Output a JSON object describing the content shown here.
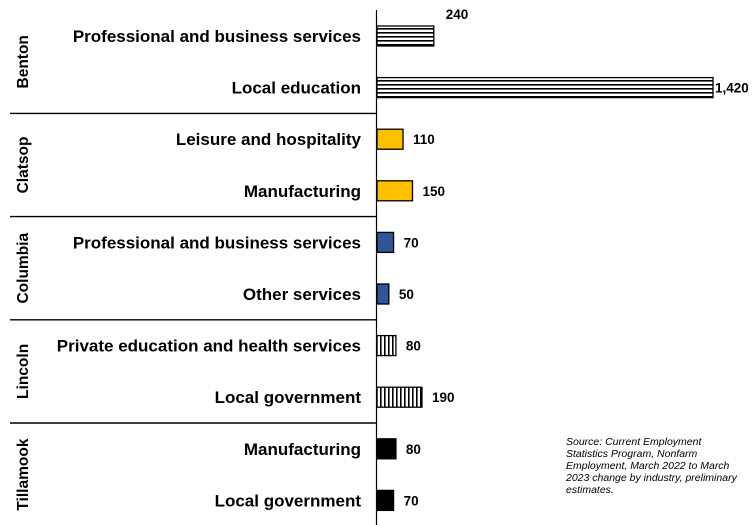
{
  "chart_data": {
    "type": "bar",
    "orientation": "horizontal",
    "title": "",
    "xlabel": "",
    "ylabel": "",
    "xlim": [
      0,
      1420
    ],
    "grid": false,
    "groups": [
      {
        "name": "Benton",
        "pattern": "horizontal-stripes",
        "color": "#000000",
        "bars": [
          {
            "category": "Professional and business services",
            "value": 240,
            "value_label": "240"
          },
          {
            "category": "Local education",
            "value": 1420,
            "value_label": "1,420"
          }
        ]
      },
      {
        "name": "Clatsop",
        "pattern": "solid",
        "color": "#FFC000",
        "bars": [
          {
            "category": "Leisure and hospitality",
            "value": 110,
            "value_label": "110"
          },
          {
            "category": "Manufacturing",
            "value": 150,
            "value_label": "150"
          }
        ]
      },
      {
        "name": "Columbia",
        "pattern": "solid",
        "color": "#2F5597",
        "bars": [
          {
            "category": "Professional and business services",
            "value": 70,
            "value_label": "70"
          },
          {
            "category": "Other services",
            "value": 50,
            "value_label": "50"
          }
        ]
      },
      {
        "name": "Lincoln",
        "pattern": "vertical-stripes",
        "color": "#000000",
        "bars": [
          {
            "category": "Private education and health services",
            "value": 80,
            "value_label": "80"
          },
          {
            "category": "Local government",
            "value": 190,
            "value_label": "190"
          }
        ]
      },
      {
        "name": "Tillamook",
        "pattern": "solid",
        "color": "#000000",
        "bars": [
          {
            "category": "Manufacturing",
            "value": 80,
            "value_label": "80"
          },
          {
            "category": "Local government",
            "value": 70,
            "value_label": "70"
          }
        ]
      }
    ]
  },
  "source_note": "Source: Current Employment Statistics Program, Nonfarm Employment, March 2022 to March 2023 change by industry, preliminary estimates."
}
